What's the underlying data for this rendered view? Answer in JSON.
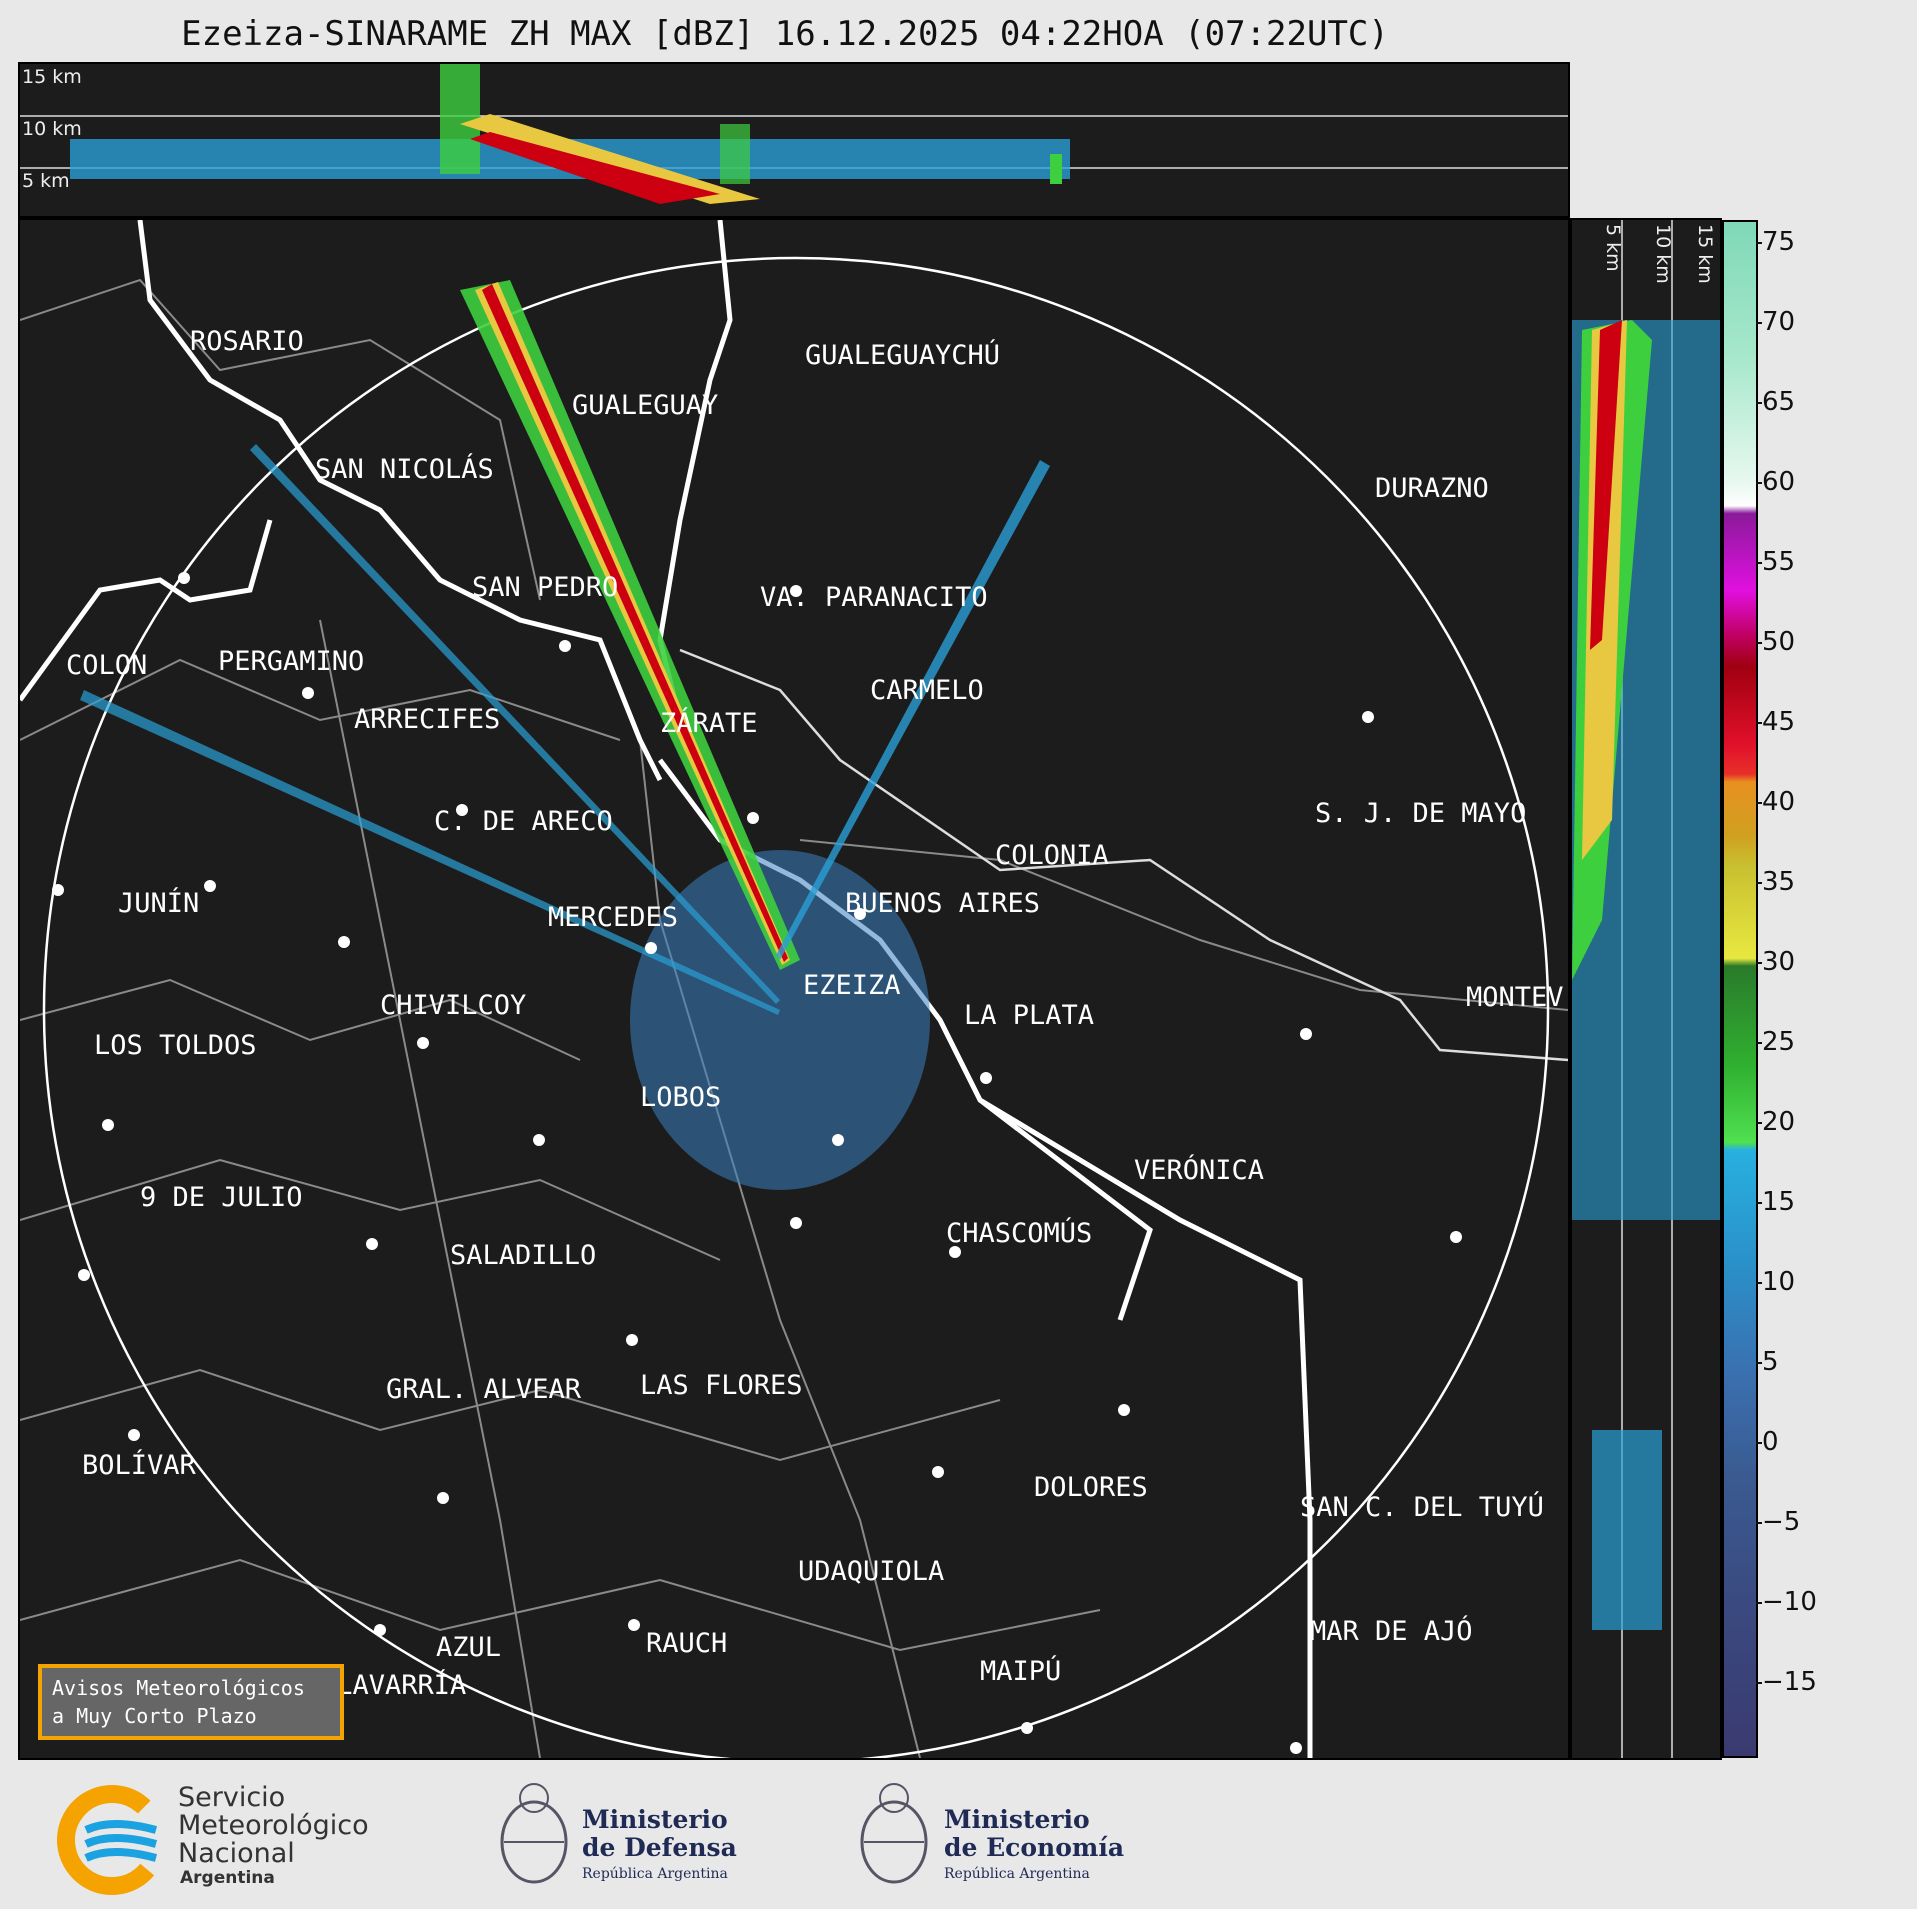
{
  "header": {
    "title": "Ezeiza-SINARAME ZH MAX [dBZ] 16.12.2025 04:22HOA (07:22UTC)"
  },
  "top_panel": {
    "alt_labels": [
      "15 km",
      "10 km",
      "5 km"
    ]
  },
  "side_panel": {
    "alt_labels": [
      "5 km",
      "10 km",
      "15 km"
    ]
  },
  "colorbar": {
    "ticks": [
      "75",
      "70",
      "65",
      "60",
      "55",
      "50",
      "45",
      "40",
      "35",
      "30",
      "25",
      "20",
      "15",
      "10",
      "5",
      "0",
      "−5",
      "−10",
      "−15"
    ]
  },
  "cities": [
    {
      "name": "ROSARIO"
    },
    {
      "name": "GUALEGUAYCHÚ"
    },
    {
      "name": "GUALEGUAY"
    },
    {
      "name": "SAN NICOLÁS"
    },
    {
      "name": "DURAZNO"
    },
    {
      "name": "SAN PEDRO"
    },
    {
      "name": "VA. PARANACITO"
    },
    {
      "name": "COLON"
    },
    {
      "name": "PERGAMINO"
    },
    {
      "name": "CARMELO"
    },
    {
      "name": "ARRECIFES"
    },
    {
      "name": "ZÁRATE"
    },
    {
      "name": "S. J. DE MAYO"
    },
    {
      "name": "C. DE ARECO"
    },
    {
      "name": "COLONIA"
    },
    {
      "name": "JUNÍN"
    },
    {
      "name": "BUENOS AIRES"
    },
    {
      "name": "MERCEDES"
    },
    {
      "name": "EZEIZA"
    },
    {
      "name": "MONTEV"
    },
    {
      "name": "CHIVILCOY"
    },
    {
      "name": "LA PLATA"
    },
    {
      "name": "LOS TOLDOS"
    },
    {
      "name": "LOBOS"
    },
    {
      "name": "VERÓNICA"
    },
    {
      "name": "9 DE JULIO"
    },
    {
      "name": "CHASCOMÚS"
    },
    {
      "name": "SALADILLO"
    },
    {
      "name": "GRAL. ALVEAR"
    },
    {
      "name": "LAS FLORES"
    },
    {
      "name": "BOLÍVAR"
    },
    {
      "name": "DOLORES"
    },
    {
      "name": "SAN C. DEL TUYÚ"
    },
    {
      "name": "UDAQUIOLA"
    },
    {
      "name": "AZUL"
    },
    {
      "name": "RAUCH"
    },
    {
      "name": "MAR DE AJÓ"
    },
    {
      "name": "OLAVARRÍA"
    },
    {
      "name": "MAIPÚ"
    }
  ],
  "notice": {
    "line1": "Avisos Meteorológicos",
    "line2": "a Muy Corto Plazo"
  },
  "footer": {
    "smn": {
      "line1": "Servicio",
      "line2": "Meteorológico",
      "line3": "Nacional",
      "line4": "Argentina"
    },
    "defensa": {
      "line1": "Ministerio",
      "line2": "de Defensa",
      "sub": "República Argentina"
    },
    "economia": {
      "line1": "Ministerio",
      "line2": "de Economía",
      "sub": "República Argentina"
    }
  },
  "colors": {
    "background": "#1c1c1c",
    "smn_orange": "#f5a300",
    "smn_blue": "#1aa3e0"
  }
}
